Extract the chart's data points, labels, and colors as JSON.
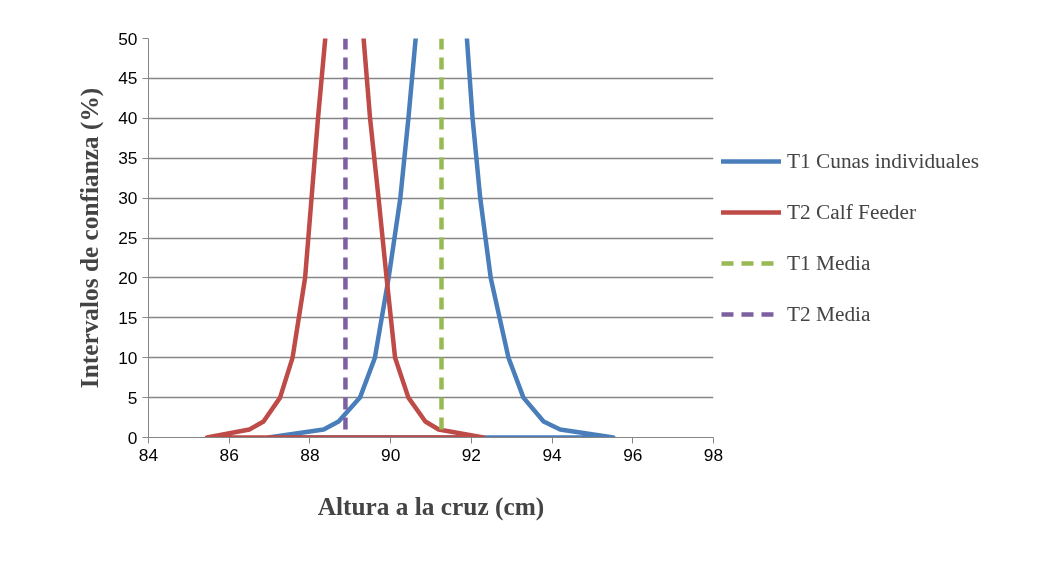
{
  "chart_data": {
    "type": "line",
    "xlabel": "Altura a la cruz (cm)",
    "ylabel": "Intervalos de confianza (%)",
    "series": [
      {
        "name": "T1 Cunas individuales",
        "color": "#4a7ebb",
        "x": [
          86.97,
          88.34,
          88.71,
          89.24,
          89.61,
          89.95,
          90.24,
          90.44,
          90.62,
          null,
          91.89,
          92.03,
          92.22,
          92.48,
          92.92,
          93.29,
          93.79,
          94.2,
          95.52,
          86.97
        ],
        "values": [
          0,
          1,
          2,
          5,
          10,
          20,
          30,
          40,
          50,
          null,
          50,
          40,
          30,
          20,
          10,
          5,
          2,
          1,
          0,
          0
        ]
      },
      {
        "name": "T2 Calf Feeder",
        "color": "#be4b48",
        "x": [
          85.45,
          86.5,
          86.85,
          87.26,
          87.57,
          87.88,
          88.04,
          88.2,
          88.38,
          null,
          89.33,
          89.49,
          89.7,
          89.9,
          90.11,
          90.44,
          90.86,
          91.19,
          92.3,
          85.45
        ],
        "values": [
          0,
          1,
          2,
          5,
          10,
          20,
          30,
          40,
          50,
          null,
          50,
          40,
          30,
          20,
          10,
          5,
          2,
          1,
          0,
          0
        ]
      },
      {
        "name": "T1 Media",
        "color": "#98b954",
        "line_style": "dashed",
        "x": [
          91.26,
          91.26
        ],
        "values": [
          1,
          50
        ]
      },
      {
        "name": "T2 Media",
        "color": "#7d60a0",
        "line_style": "dashed",
        "x": [
          88.88,
          88.88
        ],
        "values": [
          1,
          50
        ]
      }
    ],
    "xlim": [
      84,
      98
    ],
    "xticks": [
      84,
      86,
      88,
      90,
      92,
      94,
      96,
      98
    ],
    "ylim": [
      0,
      50
    ],
    "yticks": [
      0,
      5,
      10,
      15,
      20,
      25,
      30,
      35,
      40,
      45,
      50
    ],
    "grid": "y",
    "legend": "right",
    "marker": "none"
  }
}
